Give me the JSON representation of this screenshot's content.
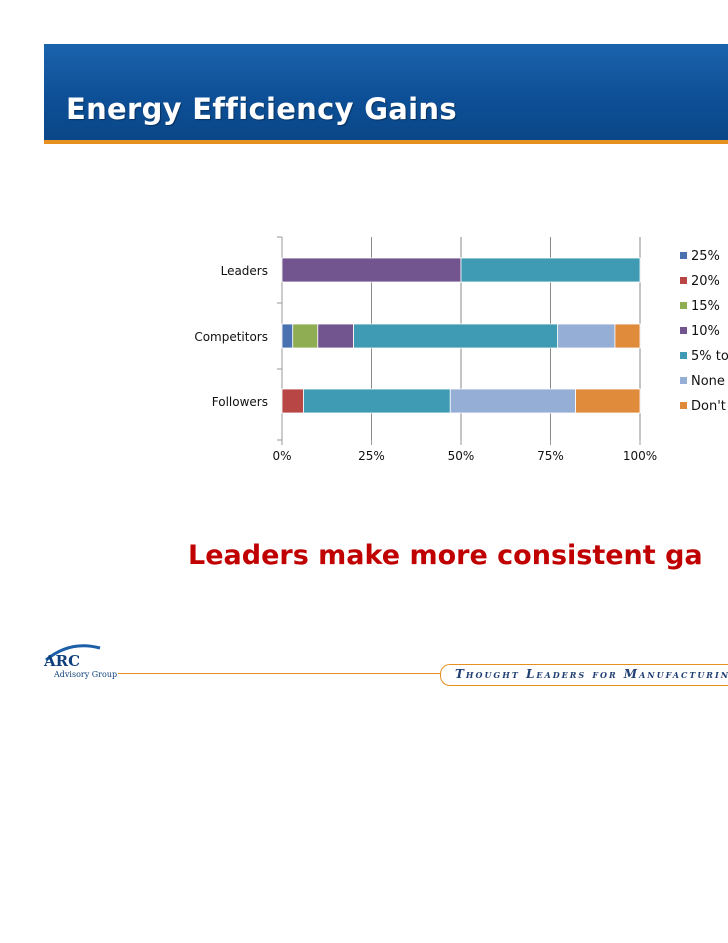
{
  "slide": {
    "title": "Energy Efficiency Gains",
    "tagline": "Leaders make more consistent ga",
    "footer_banner": "Thought Leaders for Manufacturing & Supply C",
    "logo": {
      "name": "ARC",
      "subtitle": "Advisory Group"
    }
  },
  "colors": {
    "title_bar": "#0d4f96",
    "accent": "#e6901f",
    "tagline": "#c00000"
  },
  "chart_data": {
    "type": "bar",
    "orientation": "horizontal",
    "stacked": true,
    "percent_stacked": true,
    "categories": [
      "Leaders",
      "Competitors",
      "Followers"
    ],
    "xlim": [
      0,
      100
    ],
    "x_ticks": [
      "0%",
      "25%",
      "50%",
      "75%",
      "100%"
    ],
    "grid": true,
    "legend_position": "right",
    "series": [
      {
        "name": "25%",
        "color": "#4a72b0",
        "values": [
          0,
          3,
          0
        ]
      },
      {
        "name": "20%",
        "color": "#b84644",
        "values": [
          0,
          0,
          6
        ]
      },
      {
        "name": "15%",
        "color": "#8fad52",
        "values": [
          0,
          7,
          0
        ]
      },
      {
        "name": "10%",
        "color": "#72558f",
        "values": [
          50,
          10,
          0
        ]
      },
      {
        "name": "5%  to",
        "color": "#3e9bb3",
        "values": [
          50,
          57,
          41
        ]
      },
      {
        "name": "None",
        "color": "#95aed6",
        "values": [
          0,
          16,
          35
        ]
      },
      {
        "name": "Don't",
        "color": "#e08a3c",
        "values": [
          0,
          7,
          18
        ]
      }
    ]
  }
}
